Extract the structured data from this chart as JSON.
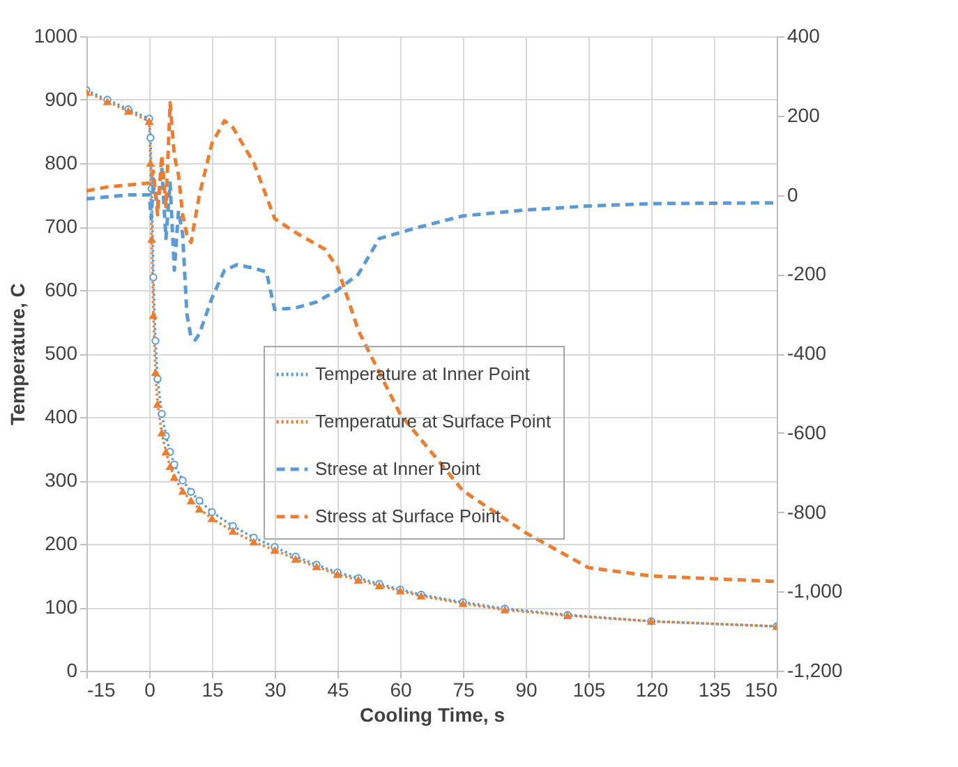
{
  "chart_data": {
    "type": "line",
    "xlabel": "Cooling Time, s",
    "ylabel": "Temperature, C",
    "xlim": [
      -15,
      150
    ],
    "xticks": [
      -15,
      0,
      15,
      30,
      45,
      60,
      75,
      90,
      105,
      120,
      135,
      150
    ],
    "ylim": [
      0,
      1000
    ],
    "yticks": [
      0,
      100,
      200,
      300,
      400,
      500,
      600,
      700,
      800,
      900,
      1000
    ],
    "y2lim": [
      -1200,
      400
    ],
    "y2ticks": [
      {
        "value": -1200,
        "label": "-1,200"
      },
      {
        "value": -1000,
        "label": "-1,000"
      },
      -800,
      -600,
      -400,
      -200,
      0,
      200,
      400
    ],
    "grid": true,
    "legend": "center",
    "series": [
      {
        "name": "Temperature at Inner Point",
        "color": "#5b9bd5",
        "line_style": "dotted",
        "marker": "circle",
        "x": [
          -15,
          -10,
          -5,
          0,
          0.3,
          0.6,
          1,
          1.5,
          2,
          3,
          4,
          5,
          6,
          8,
          10,
          12,
          15,
          20,
          25,
          30,
          35,
          40,
          45,
          50,
          55,
          60,
          65,
          75,
          85,
          100,
          120,
          150
        ],
        "values": [
          915,
          900,
          885,
          870,
          840,
          760,
          620,
          520,
          460,
          405,
          370,
          345,
          325,
          300,
          282,
          268,
          250,
          228,
          210,
          195,
          180,
          167,
          155,
          146,
          137,
          128,
          120,
          108,
          98,
          88,
          78,
          70
        ]
      },
      {
        "name": "Temperature at Surface Point",
        "color": "#ed7d31",
        "line_style": "dotted",
        "marker": "triangle",
        "x": [
          -15,
          -10,
          -5,
          0,
          0.3,
          0.6,
          1,
          1.5,
          2,
          3,
          4,
          5,
          6,
          8,
          10,
          12,
          15,
          20,
          25,
          30,
          35,
          40,
          45,
          50,
          55,
          60,
          65,
          75,
          85,
          100,
          120,
          150
        ],
        "values": [
          912,
          897,
          882,
          866,
          800,
          680,
          560,
          470,
          420,
          375,
          345,
          322,
          305,
          283,
          268,
          255,
          240,
          220,
          203,
          190,
          176,
          164,
          152,
          143,
          134,
          126,
          118,
          106,
          96,
          87,
          78,
          70
        ]
      },
      {
        "name": "Strese at Inner Point",
        "color": "#5b9bd5",
        "line_style": "dashed",
        "axis": "y2",
        "x": [
          -15,
          -10,
          -5,
          0,
          0.5,
          1,
          2,
          3,
          4,
          5,
          6,
          7,
          8,
          9,
          10,
          11,
          12,
          15,
          18,
          21,
          25,
          28,
          30,
          35,
          40,
          45,
          50,
          55,
          65,
          75,
          90,
          105,
          120,
          150
        ],
        "values": [
          -10,
          -5,
          0,
          0,
          -60,
          40,
          -30,
          70,
          -110,
          30,
          -190,
          -40,
          -100,
          -300,
          -360,
          -366,
          -350,
          -260,
          -190,
          -176,
          -185,
          -194,
          -289,
          -285,
          -270,
          -240,
          -200,
          -110,
          -80,
          -53,
          -38,
          -28,
          -22,
          -20
        ]
      },
      {
        "name": "Stress at Surface Point",
        "color": "#ed7d31",
        "line_style": "dashed",
        "axis": "y2",
        "x": [
          -15,
          -10,
          -5,
          0,
          1,
          2,
          3,
          4,
          5,
          6,
          7,
          8,
          9,
          10,
          12,
          15,
          18,
          20,
          25,
          30,
          35,
          42,
          45,
          50,
          60,
          75,
          90,
          105,
          120,
          150
        ],
        "values": [
          10,
          20,
          25,
          30,
          60,
          -50,
          100,
          -30,
          232,
          100,
          50,
          -50,
          -100,
          -120,
          0,
          130,
          187,
          170,
          81,
          -60,
          -95,
          -137,
          -183,
          -342,
          -553,
          -746,
          -852,
          -940,
          -961,
          -975
        ]
      }
    ]
  }
}
